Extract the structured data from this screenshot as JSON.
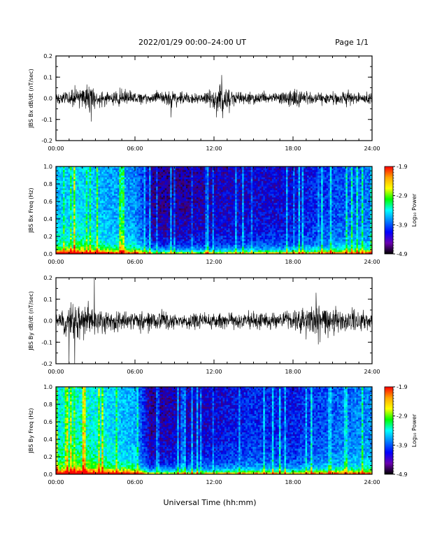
{
  "header": {
    "title": "2022/01/29  00:00–24:00 UT",
    "page": "Page 1/1"
  },
  "footer": {
    "xlabel": "Universal Time (hh:mm)"
  },
  "colorbar": {
    "label": "Log₁₀ Power",
    "ticks": [
      "-1.9",
      "-2.9",
      "-3.9",
      "-4.9"
    ],
    "colors": [
      "#ff0000",
      "#ffa500",
      "#ffff00",
      "#00ff00",
      "#00ffff",
      "#0080ff",
      "#0000ff",
      "#6a00b0",
      "#000000"
    ]
  },
  "chart_data": [
    {
      "type": "line",
      "ylabel": "JBS Bx dB/dt (nT/sec)",
      "xlim": [
        "00:00",
        "24:00"
      ],
      "ylim": [
        -0.2,
        0.2
      ],
      "x_ticks": [
        "00:00",
        "06:00",
        "12:00",
        "18:00",
        "24:00"
      ],
      "y_ticks": [
        "0.2",
        "0.1",
        "0.0",
        "-0.1",
        "-0.2"
      ],
      "series": [
        {
          "color": "#000000",
          "x_hours": [
            0,
            1,
            2,
            2.5,
            3,
            4,
            5,
            6,
            7,
            8,
            8.7,
            9,
            10,
            11,
            12,
            12.6,
            13,
            14,
            15,
            16,
            17,
            18,
            19,
            20,
            21,
            22,
            23,
            24
          ],
          "y_envelope": [
            0.03,
            0.04,
            0.06,
            0.09,
            0.06,
            0.04,
            0.05,
            0.03,
            0.03,
            0.04,
            0.06,
            0.04,
            0.03,
            0.03,
            0.05,
            0.11,
            0.06,
            0.04,
            0.03,
            0.04,
            0.03,
            0.06,
            0.04,
            0.03,
            0.03,
            0.04,
            0.03,
            0.03
          ],
          "notable_extremes": [
            {
              "x": "02:40",
              "y": 0.09
            },
            {
              "x": "02:40",
              "y": -0.11
            },
            {
              "x": "08:45",
              "y": -0.09
            },
            {
              "x": "12:35",
              "y": 0.11
            },
            {
              "x": "13:10",
              "y": -0.07
            }
          ]
        }
      ]
    },
    {
      "type": "heatmap",
      "ylabel": "JBS Bx Freq (Hz)",
      "xlim": [
        "00:00",
        "24:00"
      ],
      "ylim": [
        0.0,
        1.0
      ],
      "x_ticks": [
        "00:00",
        "06:00",
        "12:00",
        "18:00",
        "24:00"
      ],
      "y_ticks": [
        "1.0",
        "0.8",
        "0.6",
        "0.4",
        "0.2",
        "0.0"
      ],
      "z_label": "Log₁₀ Power",
      "z_range": [
        -4.9,
        -1.9
      ],
      "description_values": {
        "x_hours": [
          0,
          2,
          4,
          6,
          7.4,
          9,
          12,
          15,
          18,
          21,
          24
        ],
        "typical_log_power": [
          -3.5,
          -3.4,
          -3.6,
          -3.7,
          -4.5,
          -4.5,
          -4.4,
          -4.3,
          -4.3,
          -4.0,
          -3.8
        ]
      }
    },
    {
      "type": "line",
      "ylabel": "JBS By dB/dt (nT/sec)",
      "xlim": [
        "00:00",
        "24:00"
      ],
      "ylim": [
        -0.2,
        0.2
      ],
      "x_ticks": [
        "00:00",
        "06:00",
        "12:00",
        "18:00",
        "24:00"
      ],
      "y_ticks": [
        "0.2",
        "0.1",
        "0.0",
        "-0.1",
        "-0.2"
      ],
      "series": [
        {
          "color": "#000000",
          "x_hours": [
            0,
            1,
            1.5,
            2,
            3,
            4,
            5,
            6,
            7,
            8,
            9,
            10,
            11,
            12,
            13,
            14,
            15,
            16,
            17,
            18,
            19,
            19.8,
            20.5,
            21,
            22,
            23,
            24
          ],
          "y_envelope": [
            0.05,
            0.09,
            0.12,
            0.09,
            0.07,
            0.06,
            0.05,
            0.04,
            0.06,
            0.05,
            0.04,
            0.04,
            0.04,
            0.04,
            0.05,
            0.04,
            0.05,
            0.04,
            0.04,
            0.05,
            0.08,
            0.1,
            0.08,
            0.07,
            0.06,
            0.05,
            0.04
          ],
          "notable_extremes": [
            {
              "x": "01:00",
              "y": -0.2
            },
            {
              "x": "01:25",
              "y": -0.2
            },
            {
              "x": "02:55",
              "y": 0.2
            },
            {
              "x": "19:45",
              "y": 0.13
            },
            {
              "x": "19:55",
              "y": -0.11
            }
          ]
        }
      ]
    },
    {
      "type": "heatmap",
      "ylabel": "JBS By Freq (Hz)",
      "xlim": [
        "00:00",
        "24:00"
      ],
      "ylim": [
        0.0,
        1.0
      ],
      "x_ticks": [
        "00:00",
        "06:00",
        "12:00",
        "18:00",
        "24:00"
      ],
      "y_ticks": [
        "1.0",
        "0.8",
        "0.6",
        "0.4",
        "0.2",
        "0.0"
      ],
      "z_label": "Log₁₀ Power",
      "z_range": [
        -4.9,
        -1.9
      ],
      "description_values": {
        "x_hours": [
          0,
          2,
          4,
          6,
          7.2,
          9,
          12,
          15,
          18,
          21,
          24
        ],
        "typical_log_power": [
          -3.3,
          -3.2,
          -3.4,
          -3.6,
          -4.5,
          -4.4,
          -4.3,
          -4.1,
          -4.2,
          -3.9,
          -3.7
        ]
      }
    }
  ]
}
